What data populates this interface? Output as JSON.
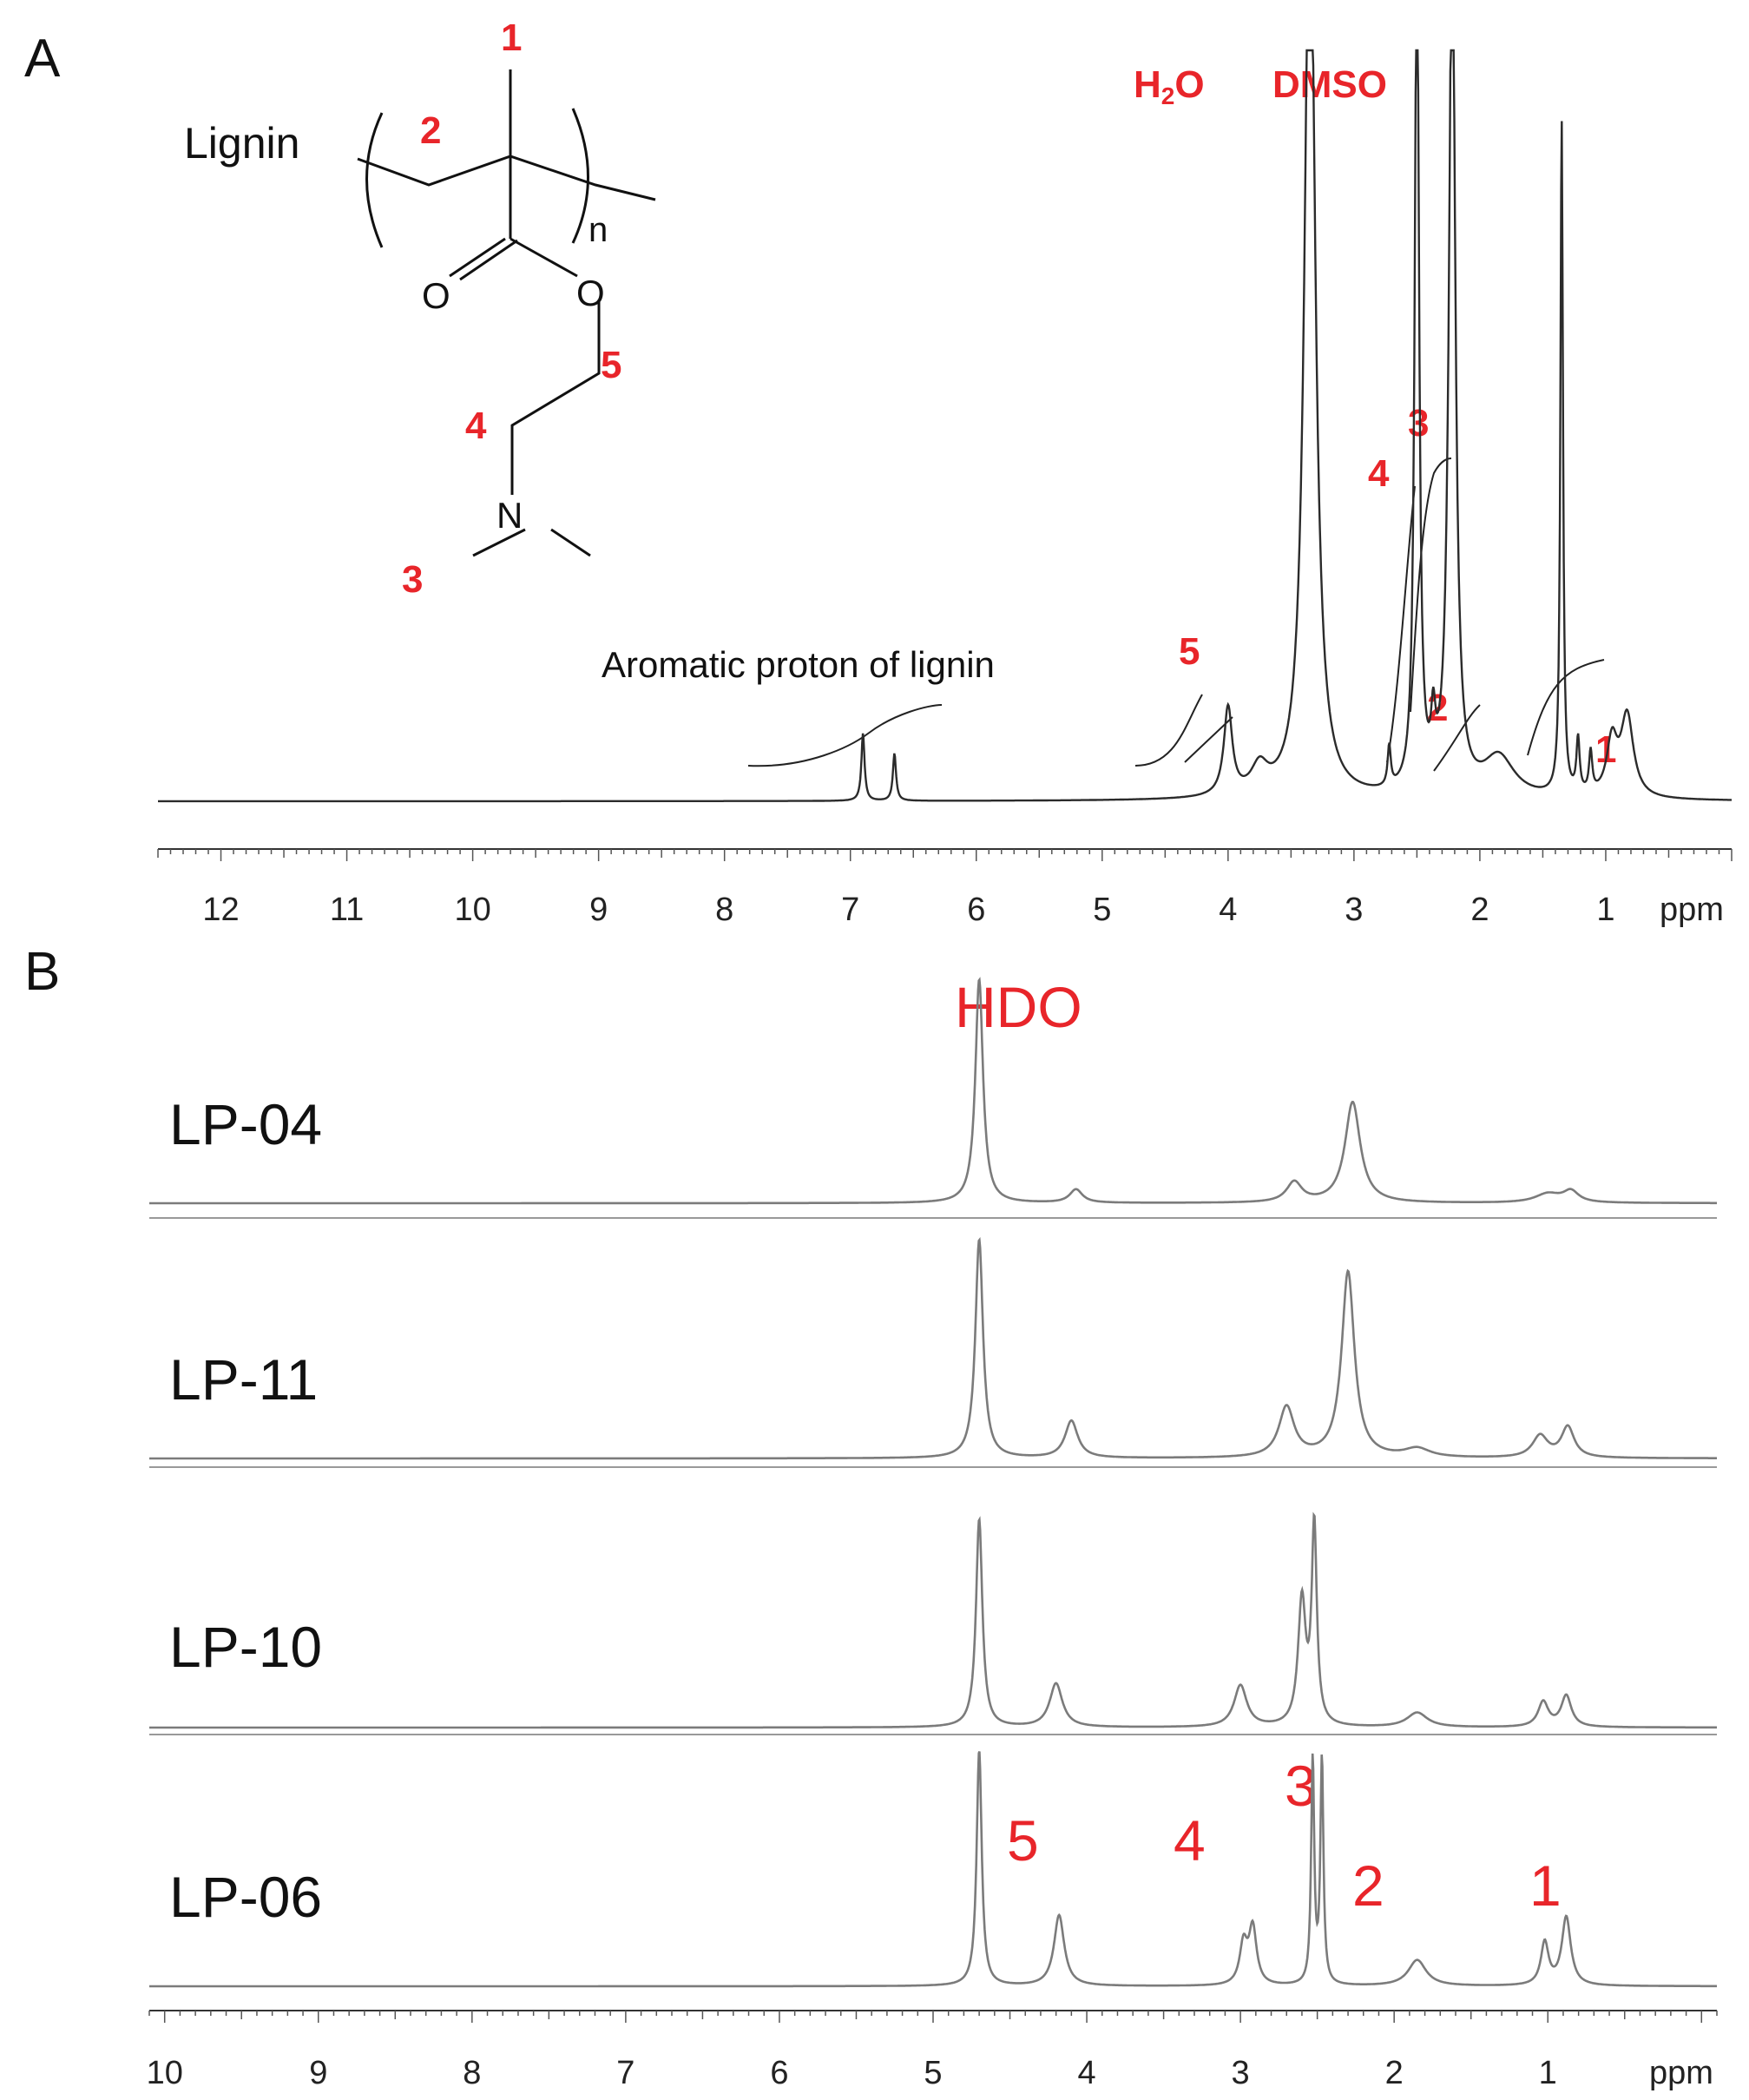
{
  "panel_a": {
    "letter": "A",
    "axis_unit": "ppm",
    "structure": {
      "lignin": "Lignin",
      "n": "n",
      "o1": "O",
      "o2": "O",
      "n_atom": "N",
      "labels": [
        "1",
        "2",
        "3",
        "4",
        "5"
      ]
    },
    "solvent_labels": {
      "h2o_h": "H",
      "h2o_sub": "2",
      "h2o_o": "O",
      "dmso": "DMSO"
    },
    "aromatic_label": "Aromatic proton of lignin",
    "peak_labels": [
      "5",
      "4",
      "3",
      "2",
      "1"
    ]
  },
  "panel_b": {
    "letter": "B",
    "axis_unit": "ppm",
    "hdo_label": "HDO",
    "samples": [
      "LP-04",
      "LP-11",
      "LP-10",
      "LP-06"
    ],
    "peak_labels": [
      "5",
      "4",
      "3",
      "2",
      "1"
    ]
  },
  "chart_data": [
    {
      "type": "line",
      "title": "",
      "xlabel": "ppm",
      "xlim": [
        12.5,
        0
      ],
      "x_reversed": true,
      "ticks": [
        12,
        11,
        10,
        9,
        8,
        7,
        6,
        5,
        4,
        3,
        2,
        1
      ],
      "series": [
        {
          "peaks": [
            {
              "ppm": 6.9,
              "height": 0.1,
              "width": 0.015
            },
            {
              "ppm": 6.65,
              "height": 0.07,
              "width": 0.015
            },
            {
              "ppm": 4.0,
              "height": 0.13,
              "width": 0.04
            },
            {
              "ppm": 3.75,
              "height": 0.04,
              "width": 0.08
            },
            {
              "ppm": 3.35,
              "height": 1.4,
              "width": 0.05
            },
            {
              "ppm": 2.72,
              "height": 0.06,
              "width": 0.015
            },
            {
              "ppm": 2.5,
              "height": 1.3,
              "width": 0.02
            },
            {
              "ppm": 2.37,
              "height": 0.08,
              "width": 0.02
            },
            {
              "ppm": 2.22,
              "height": 1.3,
              "width": 0.03
            },
            {
              "ppm": 1.85,
              "height": 0.06,
              "width": 0.15
            },
            {
              "ppm": 1.35,
              "height": 1.0,
              "width": 0.012
            },
            {
              "ppm": 1.22,
              "height": 0.08,
              "width": 0.015
            },
            {
              "ppm": 1.12,
              "height": 0.06,
              "width": 0.015
            },
            {
              "ppm": 0.95,
              "height": 0.08,
              "width": 0.05
            },
            {
              "ppm": 0.83,
              "height": 0.12,
              "width": 0.06
            }
          ]
        }
      ]
    },
    {
      "type": "line",
      "title": "",
      "xlabel": "ppm",
      "xlim": [
        10.1,
        -0.1
      ],
      "x_reversed": true,
      "ticks": [
        10,
        9,
        8,
        7,
        6,
        5,
        4,
        3,
        2,
        1
      ],
      "series": [
        {
          "name": "LP-04",
          "peaks": [
            {
              "ppm": 4.7,
              "height": 1.0,
              "width": 0.03
            },
            {
              "ppm": 4.07,
              "height": 0.06,
              "width": 0.05
            },
            {
              "ppm": 2.65,
              "height": 0.09,
              "width": 0.06
            },
            {
              "ppm": 2.27,
              "height": 0.45,
              "width": 0.06
            },
            {
              "ppm": 1.0,
              "height": 0.04,
              "width": 0.1
            },
            {
              "ppm": 0.85,
              "height": 0.05,
              "width": 0.06
            }
          ]
        },
        {
          "name": "LP-11",
          "peaks": [
            {
              "ppm": 4.7,
              "height": 1.0,
              "width": 0.03
            },
            {
              "ppm": 4.1,
              "height": 0.17,
              "width": 0.05
            },
            {
              "ppm": 2.7,
              "height": 0.23,
              "width": 0.06
            },
            {
              "ppm": 2.3,
              "height": 0.85,
              "width": 0.05
            },
            {
              "ppm": 1.85,
              "height": 0.04,
              "width": 0.1
            },
            {
              "ppm": 1.05,
              "height": 0.1,
              "width": 0.06
            },
            {
              "ppm": 0.87,
              "height": 0.14,
              "width": 0.05
            }
          ]
        },
        {
          "name": "LP-10",
          "peaks": [
            {
              "ppm": 4.7,
              "height": 1.0,
              "width": 0.025
            },
            {
              "ppm": 4.2,
              "height": 0.21,
              "width": 0.05
            },
            {
              "ppm": 3.0,
              "height": 0.2,
              "width": 0.05
            },
            {
              "ppm": 2.6,
              "height": 0.6,
              "width": 0.03
            },
            {
              "ppm": 2.52,
              "height": 0.95,
              "width": 0.02
            },
            {
              "ppm": 1.85,
              "height": 0.07,
              "width": 0.08
            },
            {
              "ppm": 1.03,
              "height": 0.12,
              "width": 0.04
            },
            {
              "ppm": 0.88,
              "height": 0.15,
              "width": 0.04
            }
          ]
        },
        {
          "name": "LP-06",
          "peaks": [
            {
              "ppm": 4.7,
              "height": 1.0,
              "width": 0.02
            },
            {
              "ppm": 4.18,
              "height": 0.3,
              "width": 0.04
            },
            {
              "ppm": 2.98,
              "height": 0.17,
              "width": 0.03
            },
            {
              "ppm": 2.92,
              "height": 0.24,
              "width": 0.03
            },
            {
              "ppm": 2.53,
              "height": 0.95,
              "width": 0.012
            },
            {
              "ppm": 2.47,
              "height": 0.95,
              "width": 0.012
            },
            {
              "ppm": 1.85,
              "height": 0.11,
              "width": 0.07
            },
            {
              "ppm": 1.02,
              "height": 0.18,
              "width": 0.03
            },
            {
              "ppm": 0.88,
              "height": 0.29,
              "width": 0.035
            }
          ]
        }
      ]
    }
  ]
}
